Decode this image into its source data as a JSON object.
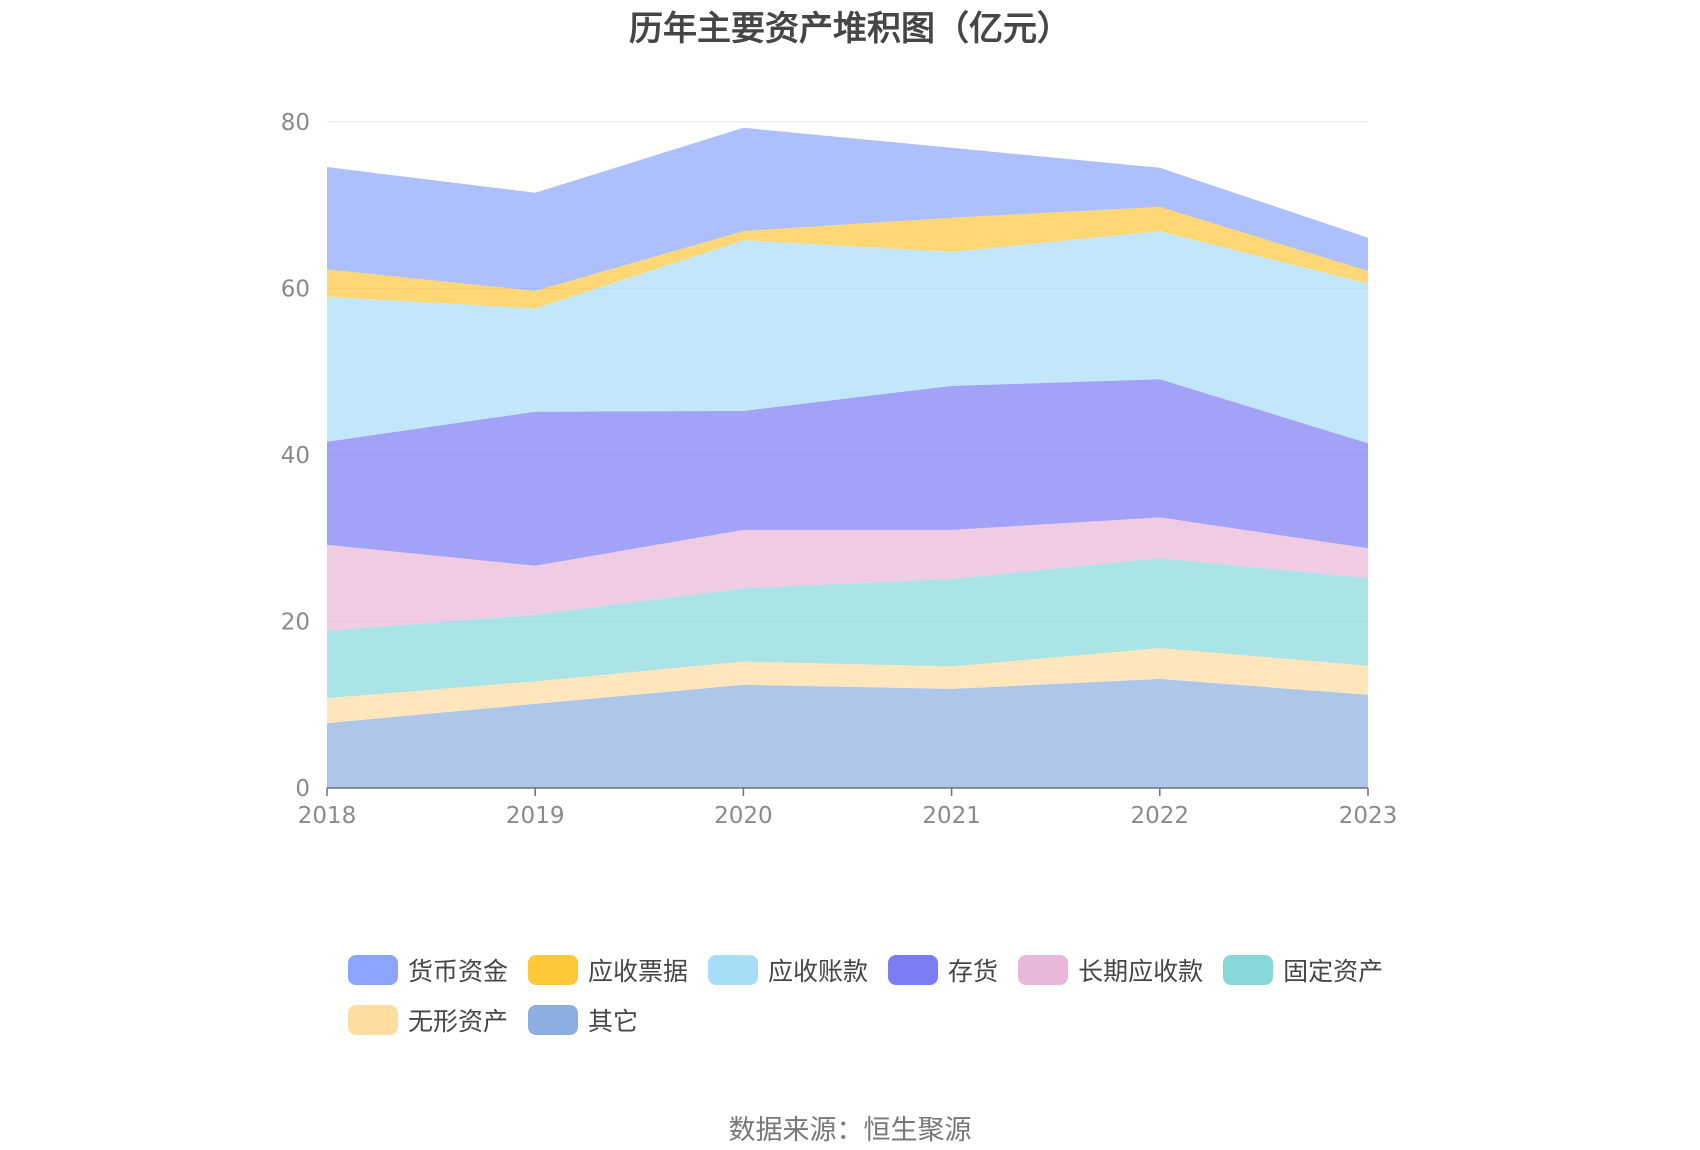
{
  "title": "历年主要资产堆积图（亿元）",
  "source": "数据来源：恒生聚源",
  "colors": {
    "货币资金": "#8aa5fb",
    "应收票据": "#ffc73a",
    "应收账款": "#a8ddf8",
    "存货": "#7a7cf3",
    "长期应收款": "#e8b7d9",
    "固定资产": "#86d8d8",
    "无形资产": "#ffdc9f",
    "其它": "#8caee0"
  },
  "chart_data": {
    "type": "area",
    "stacked": true,
    "title": "历年主要资产堆积图（亿元）",
    "categories": [
      "2018",
      "2019",
      "2020",
      "2021",
      "2022",
      "2023"
    ],
    "ylim": [
      0,
      80
    ],
    "yticks": [
      0,
      20,
      40,
      60,
      80
    ],
    "grid": true,
    "legend_position": "bottom",
    "series": [
      {
        "name": "其它",
        "values": [
          7.8,
          10.1,
          12.4,
          11.9,
          13.1,
          11.2
        ]
      },
      {
        "name": "无形资产",
        "values": [
          3.0,
          2.7,
          2.8,
          2.7,
          3.7,
          3.5
        ]
      },
      {
        "name": "固定资产",
        "values": [
          8.1,
          8.0,
          8.8,
          10.5,
          10.8,
          10.5
        ]
      },
      {
        "name": "长期应收款",
        "values": [
          10.3,
          5.9,
          7.0,
          5.9,
          4.9,
          3.6
        ]
      },
      {
        "name": "存货",
        "values": [
          12.4,
          18.5,
          14.3,
          17.3,
          16.6,
          12.6
        ]
      },
      {
        "name": "应收账款",
        "values": [
          17.4,
          12.4,
          20.5,
          16.1,
          17.8,
          19.2
        ]
      },
      {
        "name": "应收票据",
        "values": [
          3.3,
          2.1,
          1.1,
          4.1,
          2.9,
          1.5
        ]
      },
      {
        "name": "货币资金",
        "values": [
          12.3,
          11.8,
          12.4,
          8.4,
          4.7,
          4.0
        ]
      }
    ],
    "legend_order": [
      "货币资金",
      "应收票据",
      "应收账款",
      "存货",
      "长期应收款",
      "固定资产",
      "无形资产",
      "其它"
    ]
  }
}
